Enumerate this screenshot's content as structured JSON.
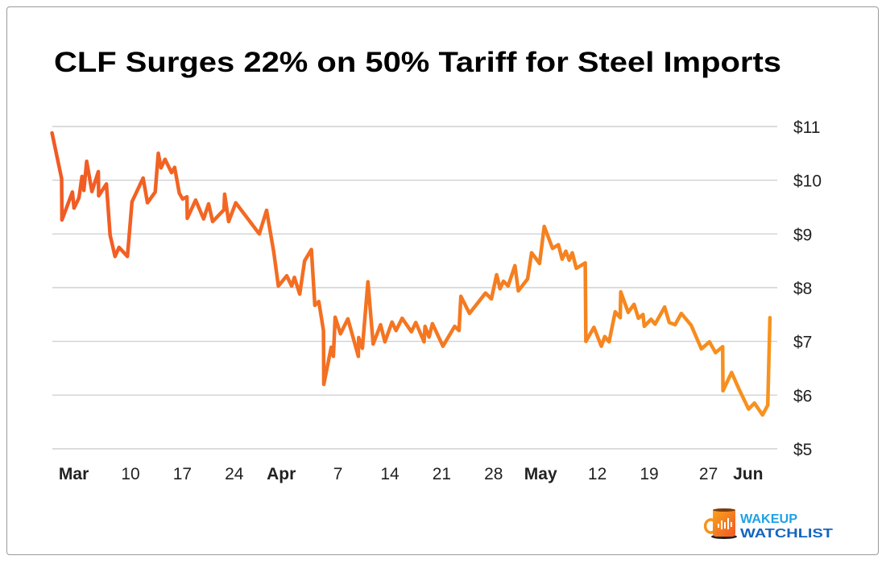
{
  "chart_data": {
    "type": "line",
    "title": "CLF Surges 22% on 50% Tariff for Steel Imports",
    "xlabel": "",
    "ylabel": "",
    "ylim": [
      5,
      11
    ],
    "y_ticks": [
      {
        "value": 11,
        "label": "$11"
      },
      {
        "value": 10,
        "label": "$10"
      },
      {
        "value": 9,
        "label": "$9"
      },
      {
        "value": 8,
        "label": "$8"
      },
      {
        "value": 7,
        "label": "$7"
      },
      {
        "value": 6,
        "label": "$6"
      },
      {
        "value": 5,
        "label": "$5"
      }
    ],
    "y_axis_side": "right",
    "grid": "horizontal",
    "line_colors": [
      "#F15A24",
      "#F7931E"
    ],
    "x_ticks": [
      {
        "date": "2025-03-03",
        "label": "Mar",
        "bold": true
      },
      {
        "date": "2025-03-10",
        "label": "10"
      },
      {
        "date": "2025-03-17",
        "label": "17"
      },
      {
        "date": "2025-03-24",
        "label": "24"
      },
      {
        "date": "2025-03-31",
        "label": "Apr",
        "bold": true
      },
      {
        "date": "2025-04-07",
        "label": "7"
      },
      {
        "date": "2025-04-14",
        "label": "14"
      },
      {
        "date": "2025-04-21",
        "label": "21"
      },
      {
        "date": "2025-04-28",
        "label": "28"
      },
      {
        "date": "2025-05-05",
        "label": "May",
        "bold": true
      },
      {
        "date": "2025-05-12",
        "label": "12"
      },
      {
        "date": "2025-05-19",
        "label": "19"
      },
      {
        "date": "2025-05-27",
        "label": "27"
      },
      {
        "date": "2025-06-02",
        "label": "Jun",
        "bold": true
      }
    ],
    "series": [
      {
        "points": [
          [
            "2025-02-27T10",
            10.88
          ],
          [
            "2025-02-28T17",
            10.03
          ],
          [
            "2025-02-28T18",
            9.26
          ],
          [
            "2025-03-02T04",
            9.78
          ],
          [
            "2025-03-02T09",
            9.48
          ],
          [
            "2025-03-03T01",
            9.67
          ],
          [
            "2025-03-03T11",
            10.07
          ],
          [
            "2025-03-03T17",
            9.81
          ],
          [
            "2025-03-04T02",
            10.35
          ],
          [
            "2025-03-04T19",
            9.79
          ],
          [
            "2025-03-05T16",
            10.16
          ],
          [
            "2025-03-05T17",
            9.71
          ],
          [
            "2025-03-06T18",
            9.93
          ],
          [
            "2025-03-07T06",
            8.98
          ],
          [
            "2025-03-07T22",
            8.58
          ],
          [
            "2025-03-08T11",
            8.75
          ],
          [
            "2025-03-09T14",
            8.58
          ],
          [
            "2025-03-10T05",
            9.6
          ],
          [
            "2025-03-11T17",
            10.04
          ],
          [
            "2025-03-12T07",
            9.58
          ],
          [
            "2025-03-13T08",
            9.78
          ],
          [
            "2025-03-13T18",
            10.5
          ],
          [
            "2025-03-14T03",
            10.23
          ],
          [
            "2025-03-14T16",
            10.39
          ],
          [
            "2025-03-15T13",
            10.14
          ],
          [
            "2025-03-15T23",
            10.24
          ],
          [
            "2025-03-16T14",
            9.76
          ],
          [
            "2025-03-17T01",
            9.65
          ],
          [
            "2025-03-17T15",
            9.69
          ],
          [
            "2025-03-17T16",
            9.29
          ],
          [
            "2025-03-18T19",
            9.63
          ],
          [
            "2025-03-19T21",
            9.28
          ],
          [
            "2025-03-20T13",
            9.56
          ],
          [
            "2025-03-21T02",
            9.23
          ],
          [
            "2025-03-22T15",
            9.45
          ],
          [
            "2025-03-22T17",
            9.74
          ],
          [
            "2025-03-23T06",
            9.23
          ],
          [
            "2025-03-24T05",
            9.58
          ],
          [
            "2025-03-27T09",
            9.0
          ],
          [
            "2025-03-28T09",
            9.44
          ],
          [
            "2025-03-29T08",
            8.66
          ],
          [
            "2025-03-29T23",
            8.03
          ],
          [
            "2025-03-31T02",
            8.22
          ],
          [
            "2025-03-31T18",
            8.03
          ],
          [
            "2025-04-01T03",
            8.19
          ],
          [
            "2025-04-01T20",
            7.88
          ],
          [
            "2025-04-02T12",
            8.5
          ],
          [
            "2025-04-03T10",
            8.71
          ],
          [
            "2025-04-03T21",
            7.67
          ],
          [
            "2025-04-04T10",
            7.74
          ],
          [
            "2025-04-05T01",
            7.2
          ],
          [
            "2025-04-05T02",
            6.2
          ],
          [
            "2025-04-06T02",
            6.89
          ],
          [
            "2025-04-06T09",
            6.72
          ],
          [
            "2025-04-06T15",
            7.45
          ],
          [
            "2025-04-07T08",
            7.14
          ],
          [
            "2025-04-08T08",
            7.42
          ],
          [
            "2025-04-09T18",
            6.72
          ],
          [
            "2025-04-09T19",
            7.07
          ],
          [
            "2025-04-10T07",
            6.87
          ],
          [
            "2025-04-11T01",
            8.11
          ],
          [
            "2025-04-11T18",
            6.95
          ],
          [
            "2025-04-12T18",
            7.31
          ],
          [
            "2025-04-13T08",
            6.99
          ],
          [
            "2025-04-14T07",
            7.36
          ],
          [
            "2025-04-14T20",
            7.2
          ],
          [
            "2025-04-15T16",
            7.43
          ],
          [
            "2025-04-16T22",
            7.18
          ],
          [
            "2025-04-17T12",
            7.35
          ],
          [
            "2025-04-18T15",
            6.99
          ],
          [
            "2025-04-18T18",
            7.28
          ],
          [
            "2025-04-19T07",
            7.08
          ],
          [
            "2025-04-19T18",
            7.33
          ],
          [
            "2025-04-21T04",
            6.91
          ],
          [
            "2025-04-22T18",
            7.28
          ],
          [
            "2025-04-23T08",
            7.2
          ],
          [
            "2025-04-23T14",
            7.84
          ],
          [
            "2025-04-24T18",
            7.52
          ],
          [
            "2025-04-26T22",
            7.9
          ],
          [
            "2025-04-27T17",
            7.79
          ],
          [
            "2025-04-28T10",
            8.24
          ],
          [
            "2025-04-28T21",
            7.98
          ],
          [
            "2025-04-29T08",
            8.12
          ],
          [
            "2025-04-29T23",
            8.03
          ],
          [
            "2025-04-30T21",
            8.41
          ],
          [
            "2025-05-01T08",
            7.94
          ],
          [
            "2025-05-02T14",
            8.16
          ],
          [
            "2025-05-03T03",
            8.65
          ],
          [
            "2025-05-04T05",
            8.45
          ],
          [
            "2025-05-04T20",
            9.14
          ],
          [
            "2025-05-05T23",
            8.73
          ],
          [
            "2025-05-06T18",
            8.8
          ],
          [
            "2025-05-07T06",
            8.53
          ],
          [
            "2025-05-07T18",
            8.68
          ],
          [
            "2025-05-08T05",
            8.51
          ],
          [
            "2025-05-08T15",
            8.65
          ],
          [
            "2025-05-09T04",
            8.36
          ],
          [
            "2025-05-10T09",
            8.46
          ],
          [
            "2025-05-10T11",
            7.0
          ],
          [
            "2025-05-11T13",
            7.26
          ],
          [
            "2025-05-12T13",
            6.91
          ],
          [
            "2025-05-13T00",
            7.09
          ],
          [
            "2025-05-13T14",
            6.99
          ],
          [
            "2025-05-14T10",
            7.55
          ],
          [
            "2025-05-15T02",
            7.44
          ],
          [
            "2025-05-15T04",
            7.92
          ],
          [
            "2025-05-16T04",
            7.54
          ],
          [
            "2025-05-16T23",
            7.69
          ],
          [
            "2025-05-17T13",
            7.43
          ],
          [
            "2025-05-18T04",
            7.5
          ],
          [
            "2025-05-18T08",
            7.28
          ],
          [
            "2025-05-19T06",
            7.41
          ],
          [
            "2025-05-19T19",
            7.32
          ],
          [
            "2025-05-21T02",
            7.64
          ],
          [
            "2025-05-21T17",
            7.35
          ],
          [
            "2025-05-22T12",
            7.31
          ],
          [
            "2025-05-23T08",
            7.52
          ],
          [
            "2025-05-24T16",
            7.3
          ],
          [
            "2025-05-26T01",
            6.86
          ],
          [
            "2025-05-27T03",
            6.99
          ],
          [
            "2025-05-27T23",
            6.79
          ],
          [
            "2025-05-28T22",
            6.9
          ],
          [
            "2025-05-28T23",
            6.08
          ],
          [
            "2025-05-30T03",
            6.42
          ],
          [
            "2025-05-31T02",
            6.12
          ],
          [
            "2025-06-01T10",
            5.74
          ],
          [
            "2025-06-02T05",
            5.85
          ],
          [
            "2025-06-03T07",
            5.63
          ],
          [
            "2025-06-04T00",
            5.81
          ],
          [
            "2025-06-04T07",
            7.44
          ]
        ]
      }
    ]
  },
  "logo": {
    "line1": "WAKEUP",
    "line2": "WATCHLIST",
    "colors": {
      "line1": "#1DA1E6",
      "line2": "#1565C0",
      "mug": "#F7931E"
    }
  }
}
